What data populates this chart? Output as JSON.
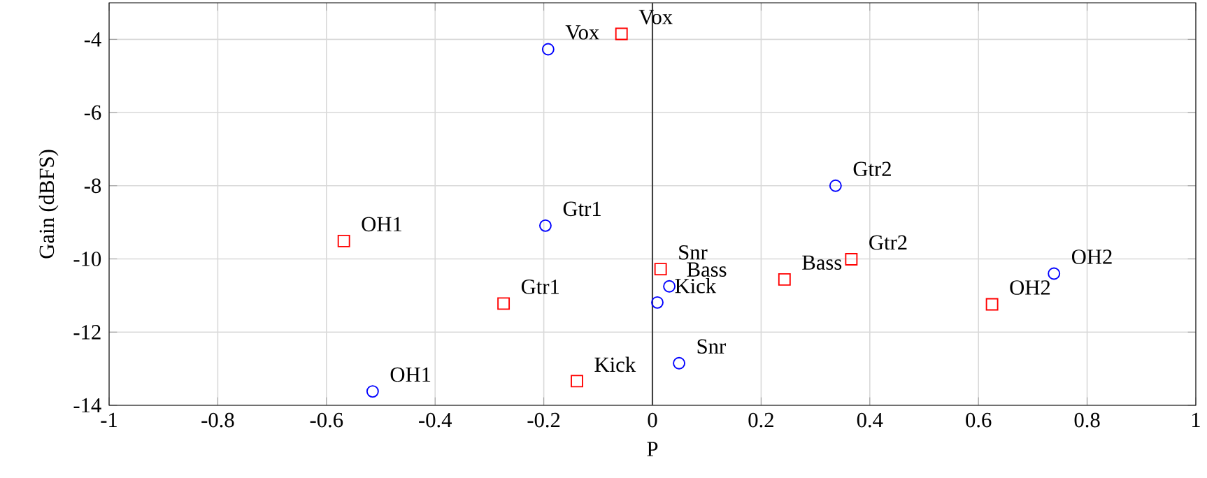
{
  "chart_data": {
    "type": "scatter",
    "xlabel": "P",
    "ylabel": "Gain (dBFS)",
    "xlim": [
      -1,
      1
    ],
    "ylim": [
      -14,
      -3
    ],
    "xticks": [
      -1,
      -0.8,
      -0.6,
      -0.4,
      -0.2,
      0,
      0.2,
      0.4,
      0.6,
      0.8,
      1
    ],
    "yticks": [
      -14,
      -12,
      -10,
      -8,
      -6,
      -4
    ],
    "grid": true,
    "ref_lines": [
      {
        "axis": "x",
        "value": 0,
        "color": "#404040"
      }
    ],
    "series": [
      {
        "color": "#0000ff",
        "marker": "circle",
        "x": [
          -0.192,
          -0.197,
          -0.515,
          0.337,
          0.031,
          0.009,
          0.049,
          0.739
        ],
        "values": [
          -4.27,
          -9.09,
          -13.62,
          -8.0,
          -10.75,
          -11.19,
          -12.85,
          -10.4
        ]
      },
      {
        "color": "#ff0000",
        "marker": "square",
        "x": [
          -0.057,
          -0.568,
          -0.274,
          -0.139,
          0.015,
          0.243,
          0.366,
          0.625
        ],
        "values": [
          -3.85,
          -9.51,
          -11.22,
          -13.34,
          -10.28,
          -10.56,
          -10.01,
          -11.24
        ]
      }
    ],
    "annotations": [
      {
        "text": "Vox",
        "x": -0.192,
        "y": -4.27
      },
      {
        "text": "Gtr1",
        "x": -0.197,
        "y": -9.09
      },
      {
        "text": "OH1",
        "x": -0.515,
        "y": -13.62
      },
      {
        "text": "Gtr2",
        "x": 0.337,
        "y": -8.0
      },
      {
        "text": "Bass",
        "x": 0.031,
        "y": -10.75
      },
      {
        "text": "Kick",
        "x": 0.009,
        "y": -11.19
      },
      {
        "text": "Snr",
        "x": 0.049,
        "y": -12.85
      },
      {
        "text": "OH2",
        "x": 0.739,
        "y": -10.4
      },
      {
        "text": "Vox",
        "x": -0.057,
        "y": -3.85
      },
      {
        "text": "OH1",
        "x": -0.568,
        "y": -9.51
      },
      {
        "text": "Gtr1",
        "x": -0.274,
        "y": -11.22
      },
      {
        "text": "Kick",
        "x": -0.139,
        "y": -13.34
      },
      {
        "text": "Snr",
        "x": 0.015,
        "y": -10.28
      },
      {
        "text": "Bass",
        "x": 0.243,
        "y": -10.56
      },
      {
        "text": "Gtr2",
        "x": 0.366,
        "y": -10.01
      },
      {
        "text": "OH2",
        "x": 0.625,
        "y": -11.24
      }
    ]
  }
}
